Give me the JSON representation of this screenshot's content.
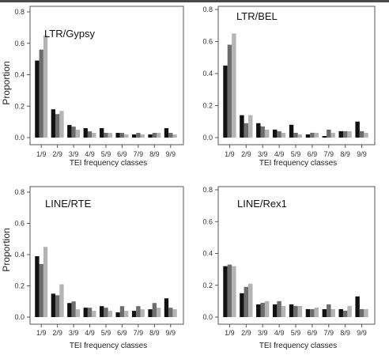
{
  "figure": {
    "ylabel": "Proportion",
    "xlabel": "TEI frequency classes",
    "series_colors": [
      "#111111",
      "#6d6d6d",
      "#b4b4b4"
    ]
  },
  "chart_data": [
    {
      "type": "bar",
      "title": "LTR/Gypsy",
      "xlabel": "TEI frequency classes",
      "ylabel": "Proportion",
      "ylim": [
        0,
        0.8
      ],
      "yticks": [
        "0.0",
        "0.2",
        "0.4",
        "0.6",
        "0.8"
      ],
      "categories": [
        "1/9",
        "2/9",
        "3/9",
        "4/9",
        "5/9",
        "6/9",
        "7/9",
        "8/9",
        "9/9"
      ],
      "series": [
        {
          "values": [
            0.49,
            0.18,
            0.08,
            0.06,
            0.06,
            0.03,
            0.02,
            0.02,
            0.06
          ]
        },
        {
          "values": [
            0.56,
            0.15,
            0.07,
            0.04,
            0.03,
            0.03,
            0.03,
            0.03,
            0.03
          ]
        },
        {
          "values": [
            0.65,
            0.17,
            0.05,
            0.03,
            0.03,
            0.02,
            0.02,
            0.03,
            0.02
          ]
        }
      ]
    },
    {
      "type": "bar",
      "title": "LTR/BEL",
      "xlabel": "TEI frequency classes",
      "ylabel": "",
      "ylim": [
        0,
        0.8
      ],
      "yticks": [
        "0.0",
        "0.2",
        "0.4",
        "0.6",
        "0.8"
      ],
      "categories": [
        "1/9",
        "2/9",
        "3/9",
        "4/9",
        "5/9",
        "6/9",
        "7/9",
        "8/9",
        "9/9"
      ],
      "series": [
        {
          "values": [
            0.45,
            0.14,
            0.09,
            0.05,
            0.08,
            0.02,
            0.01,
            0.04,
            0.1
          ]
        },
        {
          "values": [
            0.58,
            0.09,
            0.07,
            0.04,
            0.03,
            0.03,
            0.05,
            0.04,
            0.04
          ]
        },
        {
          "values": [
            0.65,
            0.14,
            0.05,
            0.03,
            0.02,
            0.03,
            0.03,
            0.04,
            0.03
          ]
        }
      ]
    },
    {
      "type": "bar",
      "title": "LINE/RTE",
      "xlabel": "TEI frequency classes",
      "ylabel": "Proportion",
      "ylim": [
        0,
        0.8
      ],
      "yticks": [
        "0.0",
        "0.2",
        "0.4",
        "0.6",
        "0.8"
      ],
      "categories": [
        "1/9",
        "2/9",
        "3/9",
        "4/9",
        "5/9",
        "6/9",
        "7/9",
        "8/9",
        "9/9"
      ],
      "series": [
        {
          "values": [
            0.39,
            0.15,
            0.09,
            0.06,
            0.07,
            0.03,
            0.04,
            0.05,
            0.12
          ]
        },
        {
          "values": [
            0.34,
            0.14,
            0.1,
            0.06,
            0.06,
            0.07,
            0.07,
            0.09,
            0.06
          ]
        },
        {
          "values": [
            0.45,
            0.21,
            0.05,
            0.04,
            0.04,
            0.04,
            0.05,
            0.06,
            0.05
          ]
        }
      ]
    },
    {
      "type": "bar",
      "title": "LINE/Rex1",
      "xlabel": "TEI frequency classes",
      "ylabel": "",
      "ylim": [
        0,
        0.8
      ],
      "yticks": [
        "0.0",
        "0.2",
        "0.4",
        "0.6",
        "0.8"
      ],
      "categories": [
        "1/9",
        "2/9",
        "3/9",
        "4/9",
        "5/9",
        "6/9",
        "7/9",
        "8/9",
        "9/9"
      ],
      "series": [
        {
          "values": [
            0.32,
            0.15,
            0.08,
            0.08,
            0.08,
            0.05,
            0.05,
            0.05,
            0.13
          ]
        },
        {
          "values": [
            0.33,
            0.19,
            0.09,
            0.1,
            0.07,
            0.05,
            0.08,
            0.04,
            0.05
          ]
        },
        {
          "values": [
            0.32,
            0.21,
            0.1,
            0.07,
            0.07,
            0.06,
            0.05,
            0.07,
            0.05
          ]
        }
      ]
    }
  ]
}
